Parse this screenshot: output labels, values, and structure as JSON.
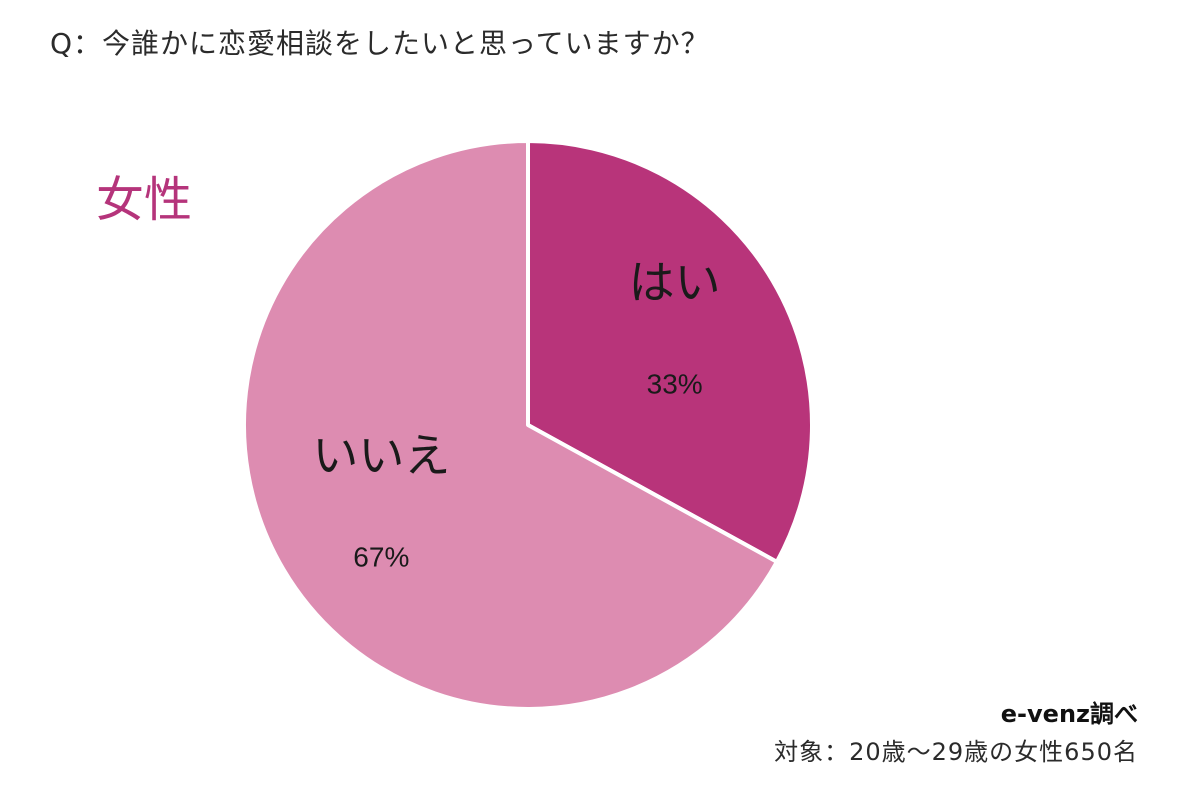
{
  "question": "Q：今誰かに恋愛相談をしたいと思っていますか？",
  "group_label": "女性",
  "source": "e-venz調べ",
  "target": "対象：20歳～29歳の女性650名",
  "colors": {
    "yes": "#b8347a",
    "no": "#dd8cb1",
    "accent": "#b5347b"
  },
  "chart_data": {
    "type": "pie",
    "title": "",
    "slices": [
      {
        "label": "はい",
        "value": 33,
        "value_label": "33%",
        "color": "#b8347a"
      },
      {
        "label": "いいえ",
        "value": 67,
        "value_label": "67%",
        "color": "#dd8cb1"
      }
    ]
  }
}
